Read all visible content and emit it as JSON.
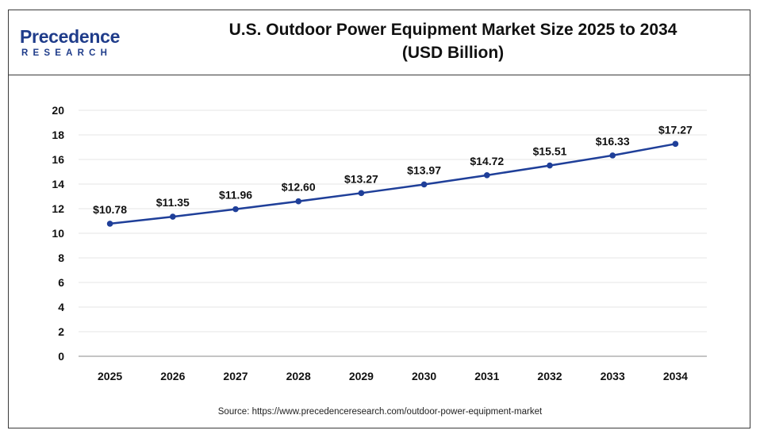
{
  "header": {
    "logo_main": "Precedence",
    "logo_sub": "RESEARCH",
    "title_line1": "U.S. Outdoor Power Equipment Market Size 2025 to 2034",
    "title_line2": "(USD Billion)"
  },
  "source": "Source: https://www.precedenceresearch.com/outdoor-power-equipment-market",
  "colors": {
    "line": "#1f3f99",
    "grid": "#e6e6e6",
    "axis": "#888888"
  },
  "chart_data": {
    "type": "line",
    "title": "U.S. Outdoor Power Equipment Market Size 2025 to 2034 (USD Billion)",
    "xlabel": "",
    "ylabel": "",
    "x": [
      "2025",
      "2026",
      "2027",
      "2028",
      "2029",
      "2030",
      "2031",
      "2032",
      "2033",
      "2034"
    ],
    "series": [
      {
        "values": [
          10.78,
          11.35,
          11.96,
          12.6,
          13.27,
          13.97,
          14.72,
          15.51,
          16.33,
          17.27
        ],
        "labels": [
          "$10.78",
          "$11.35",
          "$11.96",
          "$12.60",
          "$13.27",
          "$13.97",
          "$14.72",
          "$15.51",
          "$16.33",
          "$17.27"
        ]
      }
    ],
    "ylim": [
      0,
      20
    ],
    "yticks": [
      0,
      2,
      4,
      6,
      8,
      10,
      12,
      14,
      16,
      18,
      20
    ],
    "grid": true,
    "legend": "none"
  }
}
